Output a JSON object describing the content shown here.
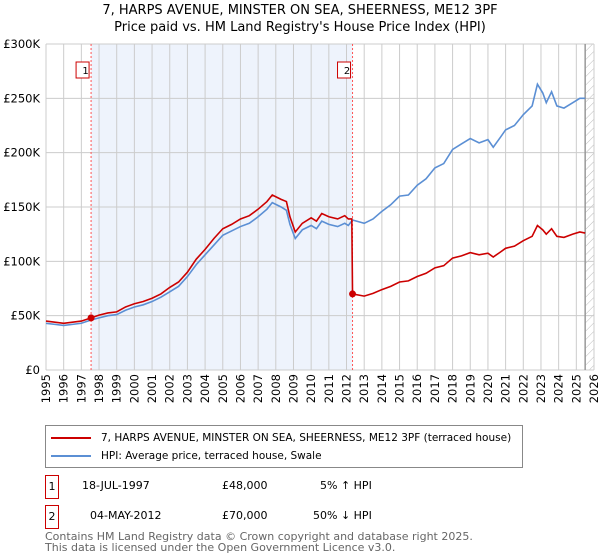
{
  "chart_data": {
    "type": "line",
    "title": "7, HARPS AVENUE, MINSTER ON SEA, SHEERNESS, ME12 3PF",
    "subtitle": "Price paid vs. HM Land Registry's House Price Index (HPI)",
    "xlim": [
      1995,
      2026
    ],
    "ylim": [
      0,
      300000
    ],
    "x_ticks": [
      "1995",
      "1996",
      "1997",
      "1998",
      "1999",
      "2000",
      "2001",
      "2002",
      "2003",
      "2004",
      "2005",
      "2006",
      "2007",
      "2008",
      "2009",
      "2010",
      "2011",
      "2012",
      "2013",
      "2014",
      "2015",
      "2016",
      "2017",
      "2018",
      "2019",
      "2020",
      "2021",
      "2022",
      "2023",
      "2024",
      "2025",
      "2026"
    ],
    "y_ticks": [
      {
        "v": 0,
        "label": "£0"
      },
      {
        "v": 50000,
        "label": "£50K"
      },
      {
        "v": 100000,
        "label": "£100K"
      },
      {
        "v": 150000,
        "label": "£150K"
      },
      {
        "v": 200000,
        "label": "£200K"
      },
      {
        "v": 250000,
        "label": "£250K"
      },
      {
        "v": 300000,
        "label": "£300K"
      }
    ],
    "grid": true,
    "shaded_period": [
      1997.55,
      2012.34
    ],
    "forecast_hatch_from": 2025.5,
    "series": [
      {
        "name": "7, HARPS AVENUE, MINSTER ON SEA, SHEERNESS, ME12 3PF (terraced house)",
        "color": "#cc0000",
        "x": [
          1995,
          1995.5,
          1996,
          1996.5,
          1997,
          1997.55,
          1998,
          1998.5,
          1999,
          1999.5,
          2000,
          2000.5,
          2001,
          2001.5,
          2002,
          2002.5,
          2003,
          2003.5,
          2004,
          2004.5,
          2005,
          2005.5,
          2006,
          2006.5,
          2007,
          2007.5,
          2007.8,
          2008.3,
          2008.6,
          2008.8,
          2009.1,
          2009.5,
          2010,
          2010.3,
          2010.6,
          2011,
          2011.5,
          2011.9,
          2012.1,
          2012.3,
          2012.34,
          2013,
          2013.5,
          2014,
          2014.5,
          2015,
          2015.5,
          2016,
          2016.5,
          2017,
          2017.5,
          2018,
          2018.5,
          2019,
          2019.5,
          2020,
          2020.3,
          2020.7,
          2021,
          2021.5,
          2022,
          2022.5,
          2022.8,
          2023.1,
          2023.3,
          2023.6,
          2023.9,
          2024.3,
          2024.8,
          2025.2,
          2025.5
        ],
        "y": [
          45,
          44,
          43,
          44,
          45,
          48,
          50.5,
          52.5,
          53.5,
          58,
          61,
          63,
          66,
          70,
          76,
          81,
          90,
          102,
          111,
          121,
          130,
          134,
          139,
          142,
          148,
          155,
          161,
          157,
          155,
          141,
          127,
          135,
          140,
          137,
          144,
          141,
          139,
          142,
          139,
          139,
          70,
          68,
          70.5,
          74,
          77,
          81,
          82,
          86,
          89,
          94,
          96,
          103,
          105,
          108,
          106,
          107.5,
          104,
          108.5,
          112,
          114,
          119,
          123,
          133,
          129,
          125,
          130,
          123,
          122,
          125,
          127,
          126
        ]
      },
      {
        "name": "HPI: Average price, terraced house, Swale",
        "color": "#5b8fd4",
        "x": [
          1995,
          1995.5,
          1996,
          1996.5,
          1997,
          1997.55,
          1998,
          1998.5,
          1999,
          1999.5,
          2000,
          2000.5,
          2001,
          2001.5,
          2002,
          2002.5,
          2003,
          2003.5,
          2004,
          2004.5,
          2005,
          2005.5,
          2006,
          2006.5,
          2007,
          2007.5,
          2007.8,
          2008.3,
          2008.6,
          2008.8,
          2009.1,
          2009.5,
          2010,
          2010.3,
          2010.6,
          2011,
          2011.5,
          2011.9,
          2012.1,
          2012.34,
          2013,
          2013.5,
          2014,
          2014.5,
          2015,
          2015.5,
          2016,
          2016.5,
          2017,
          2017.5,
          2018,
          2018.5,
          2019,
          2019.5,
          2020,
          2020.3,
          2020.7,
          2021,
          2021.5,
          2022,
          2022.5,
          2022.8,
          2023.1,
          2023.3,
          2023.6,
          2023.9,
          2024.3,
          2024.8,
          2025.2,
          2025.5
        ],
        "y": [
          43,
          42,
          41,
          42,
          43,
          46,
          48,
          50,
          51,
          55,
          58,
          60,
          63,
          67,
          72,
          77,
          86,
          97,
          106,
          115,
          124,
          128,
          132,
          135,
          141,
          148,
          154,
          150,
          147,
          134,
          121,
          129,
          133,
          130,
          137,
          134,
          132,
          135,
          133,
          138,
          135,
          139,
          146,
          152,
          160,
          161,
          170,
          176,
          186,
          190,
          203,
          208,
          213,
          209,
          212,
          205,
          214,
          221,
          225,
          235,
          243,
          263,
          255,
          246,
          256,
          243,
          241,
          246,
          250,
          250
        ]
      }
    ],
    "y_unit": "thousands GBP",
    "sales": [
      {
        "id": "1",
        "x": 1997.55,
        "y": 48
      },
      {
        "id": "2",
        "x": 2012.34,
        "y": 70
      }
    ],
    "legend_placement": "bottom"
  },
  "table": [
    {
      "id": "1",
      "date": "18-JUL-1997",
      "price": "£48,000",
      "hpi": "5% ↑ HPI"
    },
    {
      "id": "2",
      "date": "04-MAY-2012",
      "price": "£70,000",
      "hpi": "50% ↓ HPI"
    }
  ],
  "footer": {
    "line1": "Contains HM Land Registry data © Crown copyright and database right 2025.",
    "line2": "This data is licensed under the Open Government Licence v3.0."
  }
}
